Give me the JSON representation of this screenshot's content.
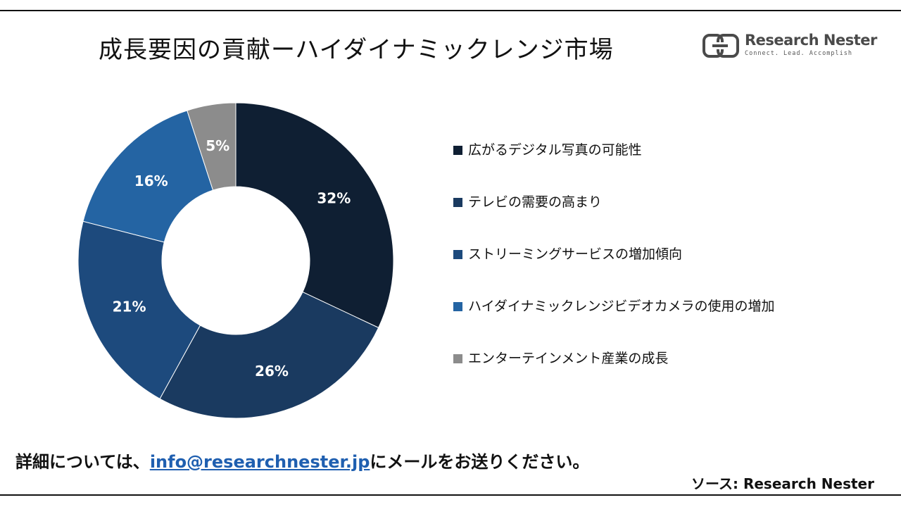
{
  "title": "成長要因の貢献ーハイダイナミックレンジ市場",
  "logo": {
    "name": "Research Nester",
    "tagline": "Connect. Lead. Accomplish"
  },
  "chart_data": {
    "type": "pie",
    "donut": true,
    "categories": [
      "広がるデジタル写真の可能性",
      "テレビの需要の高まり",
      "ストリーミングサービスの増加傾向",
      "ハイダイナミックレンジビデオカメラの使用の増加",
      "エンターテインメント産業の成長"
    ],
    "values": [
      32,
      26,
      21,
      16,
      5
    ],
    "data_labels": [
      "32%",
      "26%",
      "21%",
      "16%",
      "5%"
    ],
    "colors": [
      "#0f1f33",
      "#1a3a60",
      "#1d4a7d",
      "#2464a3",
      "#8c8c8c"
    ],
    "legend_position": "right"
  },
  "footer": {
    "prefix": "詳細については、",
    "email": "info@researchnester.jp",
    "suffix": "にメールをお送りください。",
    "source": "ソース: Research Nester"
  }
}
